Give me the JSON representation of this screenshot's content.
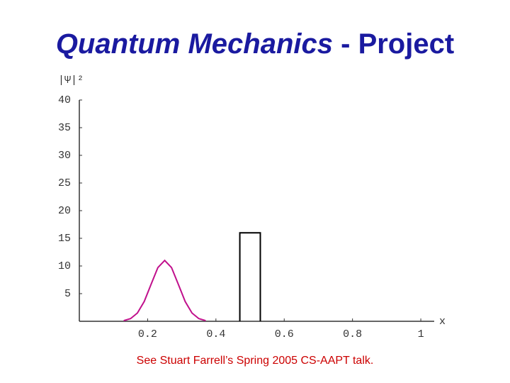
{
  "title": {
    "emphasis": "Quantum Mechanics",
    "rest": " - Project"
  },
  "chart_data": {
    "type": "line",
    "y_label": "|Ψ|²",
    "x_label": "x",
    "xlim": [
      0,
      1.06
    ],
    "ylim": [
      0,
      40
    ],
    "xticks": [
      0.2,
      0.4,
      0.6,
      0.8,
      1
    ],
    "yticks": [
      5,
      10,
      15,
      20,
      25,
      30,
      35,
      40
    ],
    "series": [
      {
        "color": "#c0108c",
        "x": [
          0.13,
          0.15,
          0.17,
          0.19,
          0.21,
          0.23,
          0.25,
          0.27,
          0.29,
          0.31,
          0.33,
          0.35,
          0.37
        ],
        "values": [
          0.12,
          0.48,
          1.49,
          3.57,
          6.67,
          9.71,
          11,
          9.71,
          6.67,
          3.57,
          1.49,
          0.48,
          0.12
        ]
      },
      {
        "color": "#000000",
        "x": [
          0.47,
          0.47,
          0.53,
          0.53
        ],
        "values": [
          0,
          16,
          16,
          0
        ]
      }
    ]
  },
  "caption": "See Stuart Farrell’s Spring 2005 CS-AAPT talk."
}
